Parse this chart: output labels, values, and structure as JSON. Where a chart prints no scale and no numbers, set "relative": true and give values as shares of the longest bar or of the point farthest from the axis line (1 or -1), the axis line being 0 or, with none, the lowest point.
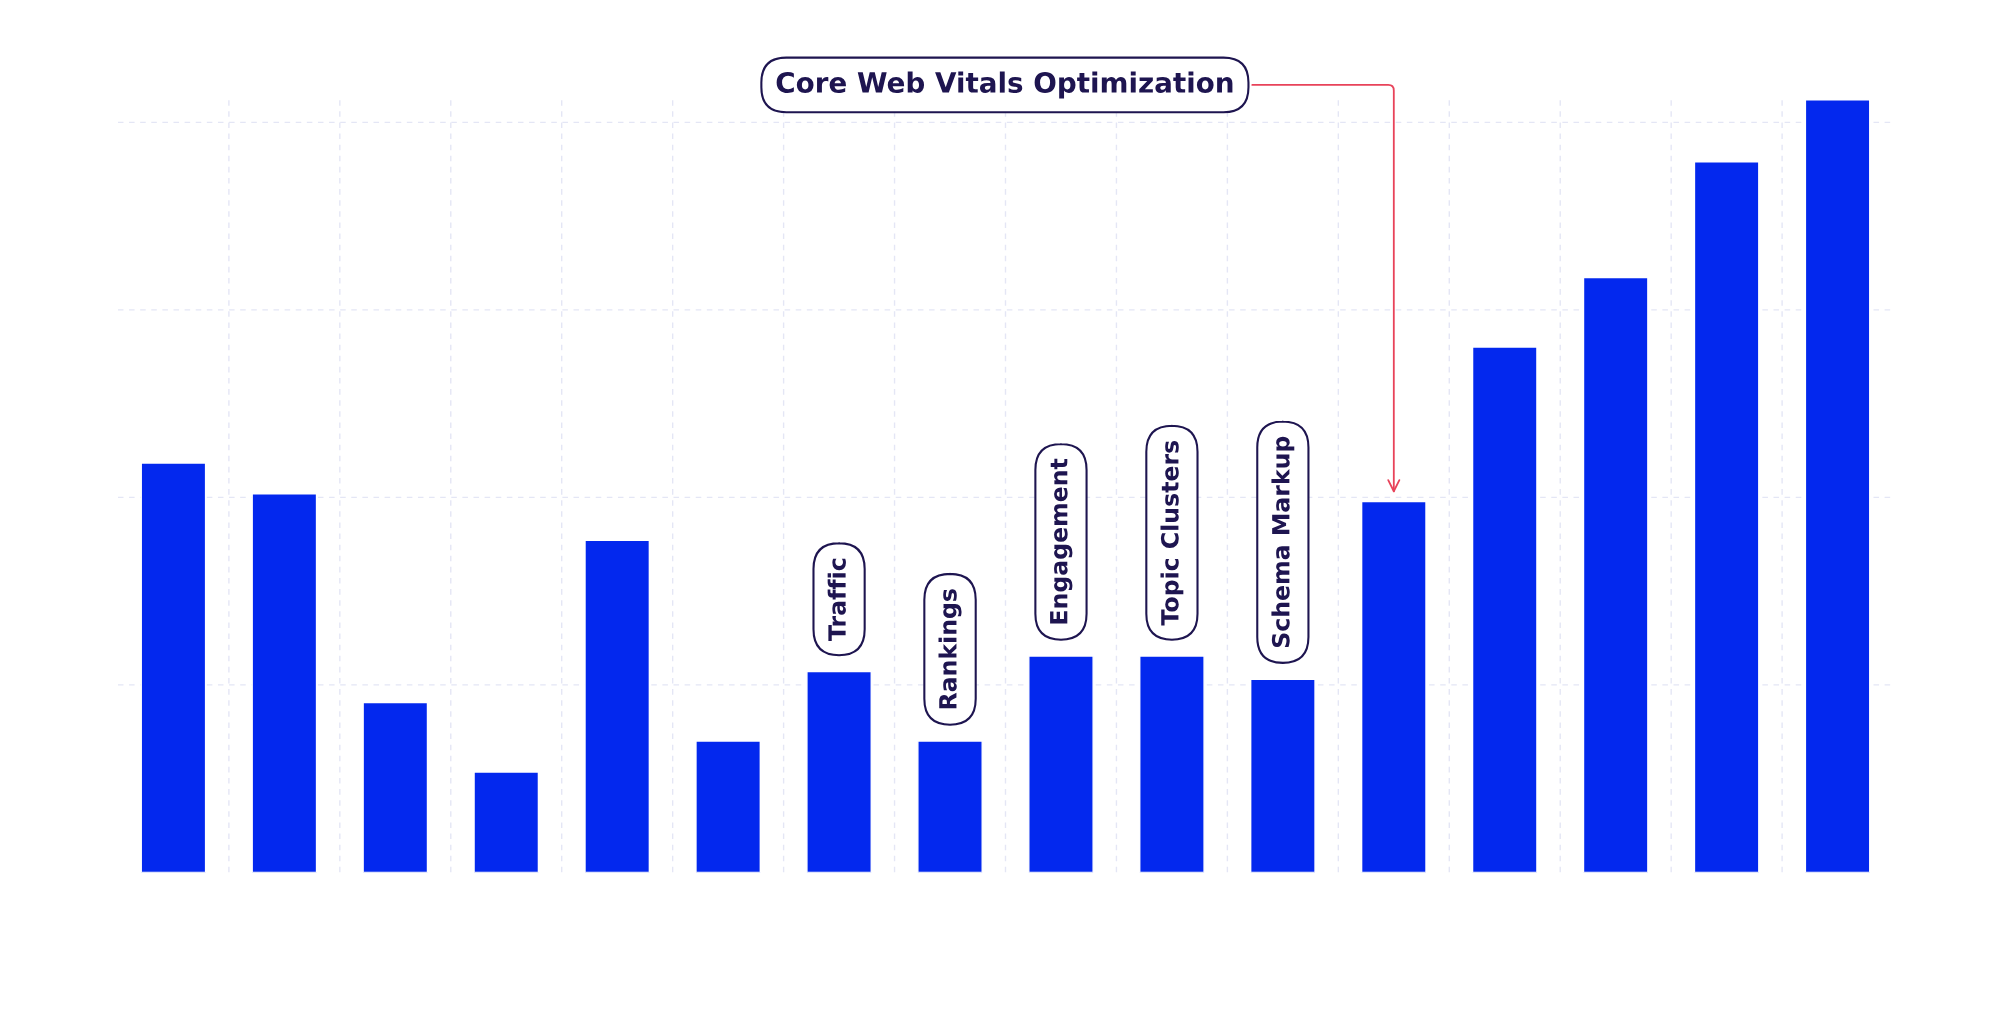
{
  "chart_data": {
    "type": "bar",
    "relative": true,
    "grid": true,
    "color": "#0328ee",
    "categories": [
      null,
      null,
      null,
      null,
      null,
      null,
      "Traffic",
      "Rankings",
      "Engagement",
      "Topic Clusters",
      "Schema Markup",
      null,
      null,
      null,
      null,
      null
    ],
    "values": [
      0.53,
      0.49,
      0.22,
      0.13,
      0.43,
      0.17,
      0.26,
      0.17,
      0.28,
      0.28,
      0.25,
      0.48,
      0.68,
      0.77,
      0.92,
      1.0
    ],
    "annotations": [
      "Core Web Vitals Optimization"
    ]
  }
}
